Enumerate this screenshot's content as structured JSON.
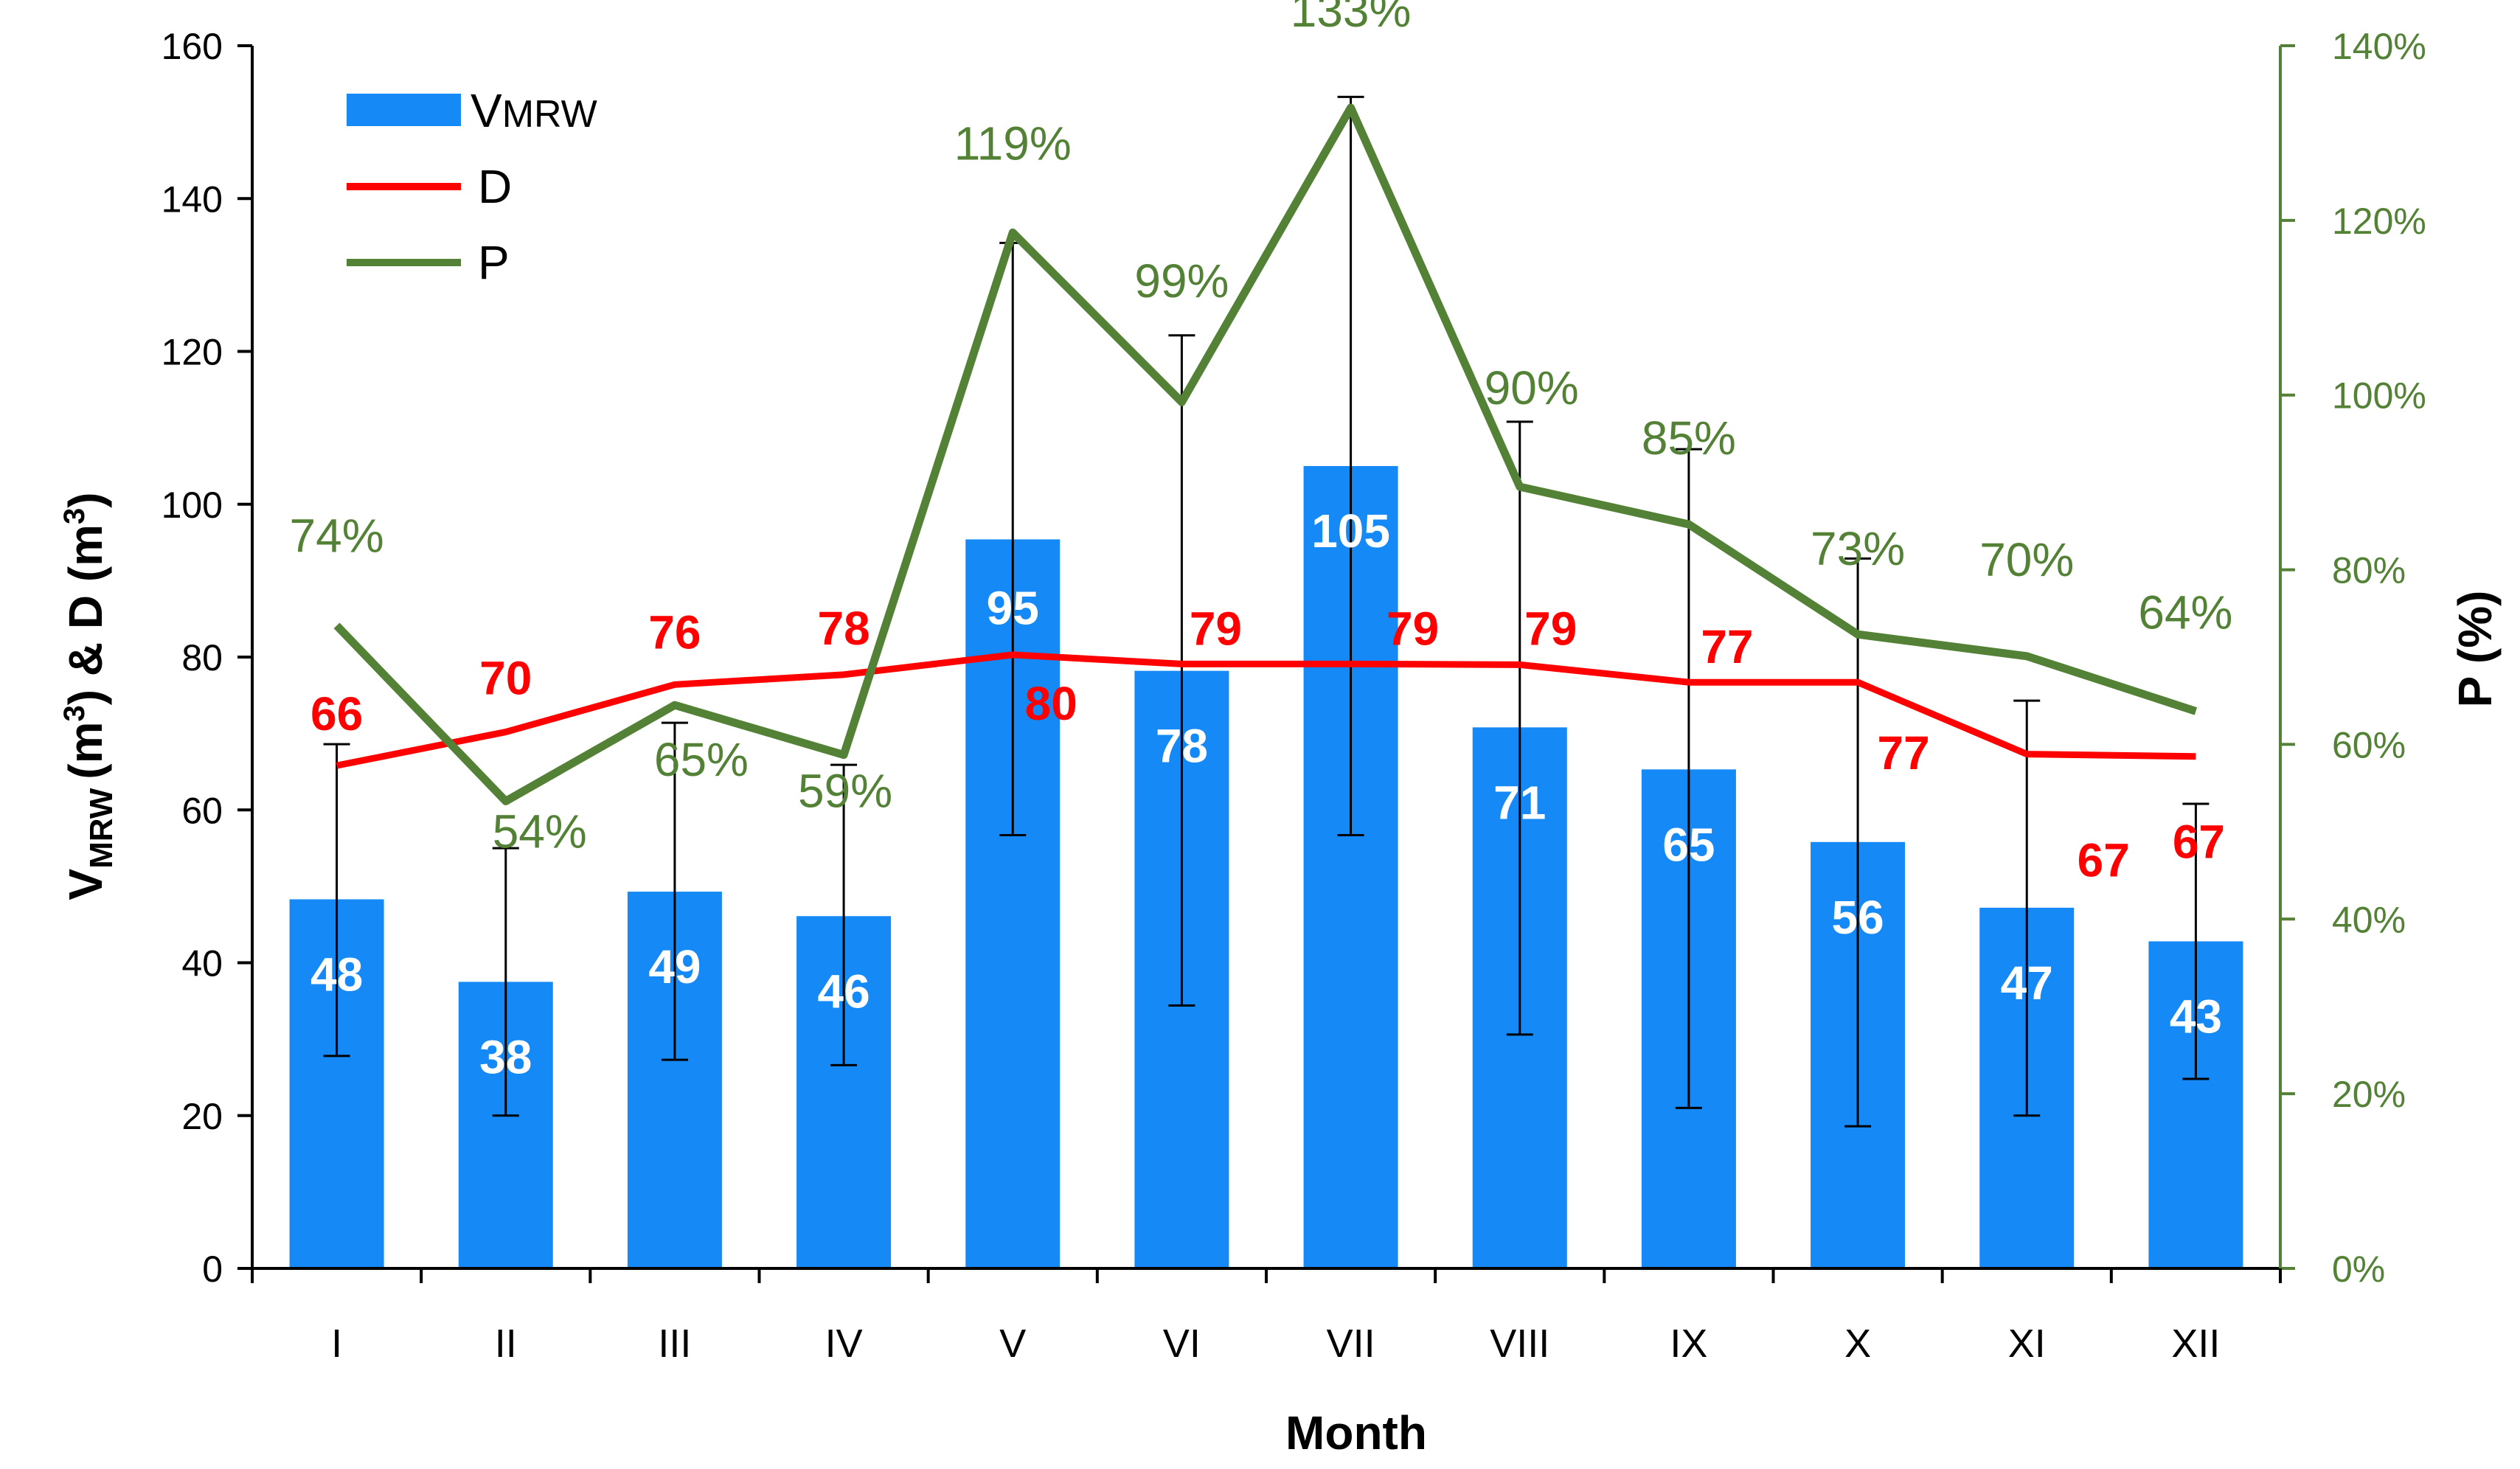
{
  "chart_data": {
    "type": "bar",
    "categories": [
      "I",
      "II",
      "III",
      "IV",
      "V",
      "VI",
      "VII",
      "VIII",
      "IX",
      "X",
      "XI",
      "XII"
    ],
    "series": [
      {
        "name": "VMRW",
        "legend_main": "V",
        "legend_sub": "MRW",
        "type": "bar",
        "axis": "left",
        "color": "#1589F5",
        "values": [
          48.3,
          37.5,
          49.3,
          46.1,
          95.4,
          78.2,
          105.0,
          70.8,
          65.3,
          55.8,
          47.2,
          42.8
        ],
        "labels": [
          "48",
          "38",
          "49",
          "46",
          "95",
          "78",
          "105",
          "71",
          "65",
          "56",
          "47",
          "43"
        ],
        "error_low": [
          27.8,
          20.0,
          27.3,
          26.6,
          56.7,
          34.4,
          56.7,
          30.6,
          21.0,
          18.6,
          20.0,
          24.8
        ],
        "error_high": [
          68.6,
          55.0,
          71.4,
          65.9,
          134.2,
          122.1,
          153.3,
          110.8,
          107.2,
          92.9,
          74.3,
          60.8
        ]
      },
      {
        "name": "D",
        "type": "line",
        "axis": "left",
        "color": "#FF0000",
        "values": [
          65.8,
          70.2,
          76.4,
          77.7,
          80.3,
          79.1,
          79.1,
          79.0,
          76.7,
          76.7,
          67.3,
          67.0
        ],
        "labels": [
          "66",
          "70",
          "76",
          "78",
          "80",
          "79",
          "79",
          "79",
          "77",
          "77",
          "67",
          "67"
        ]
      },
      {
        "name": "P",
        "type": "line",
        "axis": "right",
        "color": "#538135",
        "values": [
          73.6,
          53.5,
          64.5,
          58.8,
          118.6,
          99.2,
          132.9,
          89.5,
          85.2,
          72.6,
          70.1,
          63.8
        ],
        "labels": [
          "74%",
          "54%",
          "65%",
          "59%",
          "119%",
          "99%",
          "133%",
          "90%",
          "85%",
          "73%",
          "70%",
          "64%"
        ]
      }
    ],
    "xlabel": "Month",
    "ylabel_main": "V",
    "ylabel_sub": "MRW",
    "ylabel_unit": "(m",
    "ylabel_sup": "3",
    "ylabel_mid": ")  &  D (m",
    "ylabel_end": ")",
    "y2label": "P (%)",
    "ylim": [
      0,
      160
    ],
    "yticks": [
      0,
      20,
      40,
      60,
      80,
      100,
      120,
      140,
      160
    ],
    "y2lim": [
      0,
      140
    ],
    "y2ticks": [
      "0%",
      "20%",
      "40%",
      "60%",
      "80%",
      "100%",
      "120%",
      "140%"
    ],
    "legend_position": "top-left",
    "grid": false,
    "axis_right_color": "#538135"
  }
}
